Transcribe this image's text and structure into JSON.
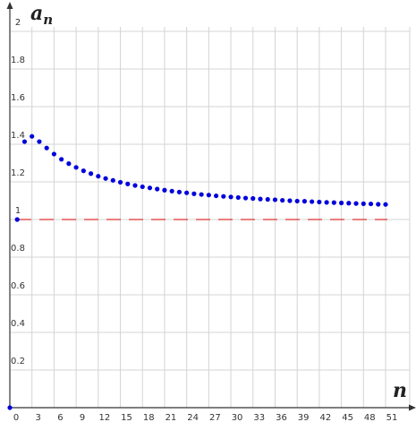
{
  "chart_data": {
    "type": "scatter",
    "xlabel": "n",
    "ylabel_base": "a",
    "ylabel_sub": "n",
    "xlim": [
      0,
      51
    ],
    "ylim": [
      0,
      2
    ],
    "x_ticks": [
      0,
      3,
      6,
      9,
      12,
      15,
      18,
      21,
      24,
      27,
      30,
      33,
      36,
      39,
      42,
      45,
      48,
      51
    ],
    "x_tick_labels": [
      "0",
      "3",
      "6",
      "9",
      "12",
      "15",
      "18",
      "21",
      "24",
      "27",
      "30",
      "33",
      "36",
      "39",
      "42",
      "45",
      "48",
      "51"
    ],
    "y_ticks": [
      0.2,
      0.4,
      0.6,
      0.8,
      1,
      1.2,
      1.4,
      1.6,
      1.8,
      2
    ],
    "y_tick_labels": [
      "0.2",
      "0.4",
      "0.6",
      "0.8",
      "1",
      "1.2",
      "1.4",
      "1.6",
      "1.8",
      "2"
    ],
    "grid": true,
    "asymptote": {
      "y": 1,
      "color": "#e03030",
      "style": "dashed"
    },
    "series": [
      {
        "color": "#0000dd",
        "points": [
          [
            0,
            0
          ],
          [
            1,
            1
          ],
          [
            2,
            1.414
          ],
          [
            3,
            1.442
          ],
          [
            4,
            1.414
          ],
          [
            5,
            1.38
          ],
          [
            6,
            1.348
          ],
          [
            7,
            1.32
          ],
          [
            8,
            1.297
          ],
          [
            9,
            1.277
          ],
          [
            10,
            1.259
          ],
          [
            11,
            1.244
          ],
          [
            12,
            1.23
          ],
          [
            13,
            1.218
          ],
          [
            14,
            1.208
          ],
          [
            15,
            1.198
          ],
          [
            16,
            1.189
          ],
          [
            17,
            1.181
          ],
          [
            18,
            1.174
          ],
          [
            19,
            1.168
          ],
          [
            20,
            1.162
          ],
          [
            21,
            1.156
          ],
          [
            22,
            1.151
          ],
          [
            23,
            1.146
          ],
          [
            24,
            1.142
          ],
          [
            25,
            1.137
          ],
          [
            26,
            1.133
          ],
          [
            27,
            1.13
          ],
          [
            28,
            1.126
          ],
          [
            29,
            1.123
          ],
          [
            30,
            1.12
          ],
          [
            31,
            1.117
          ],
          [
            32,
            1.114
          ],
          [
            33,
            1.112
          ],
          [
            34,
            1.109
          ],
          [
            35,
            1.107
          ],
          [
            36,
            1.105
          ],
          [
            37,
            1.102
          ],
          [
            38,
            1.1
          ],
          [
            39,
            1.098
          ],
          [
            40,
            1.097
          ],
          [
            41,
            1.095
          ],
          [
            42,
            1.093
          ],
          [
            43,
            1.091
          ],
          [
            44,
            1.09
          ],
          [
            45,
            1.088
          ],
          [
            46,
            1.087
          ],
          [
            47,
            1.085
          ],
          [
            48,
            1.084
          ],
          [
            49,
            1.083
          ],
          [
            50,
            1.081
          ],
          [
            51,
            1.08
          ]
        ]
      }
    ]
  }
}
